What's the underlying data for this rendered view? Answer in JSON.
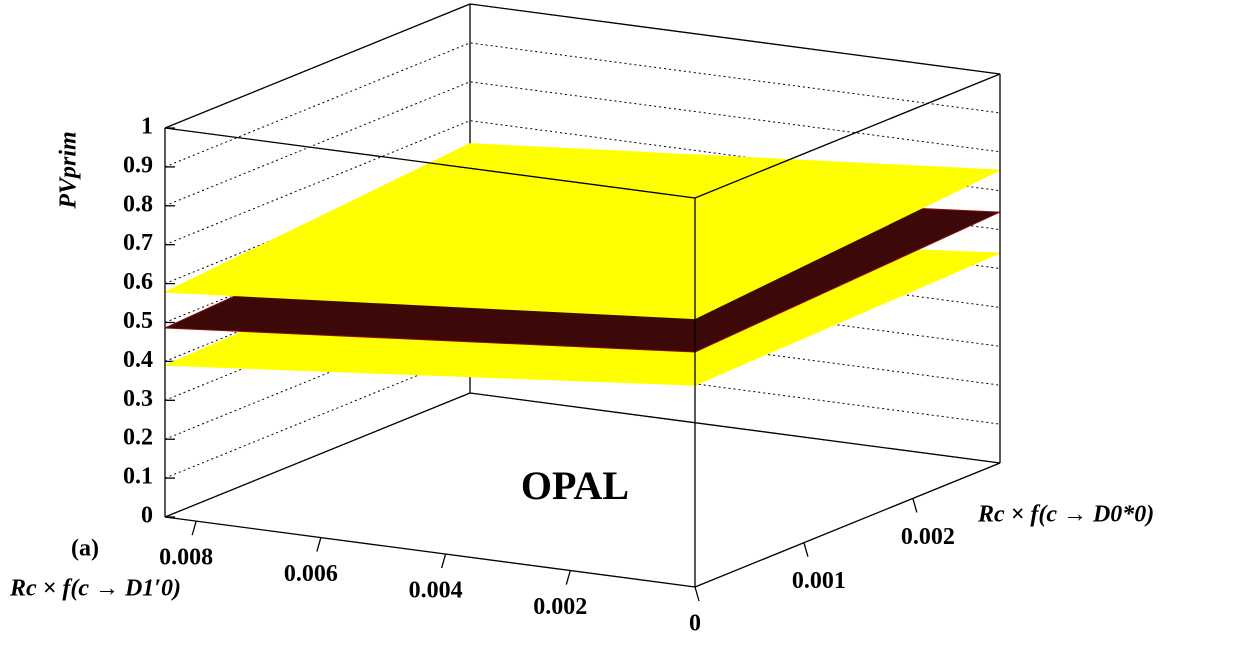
{
  "chart_data": {
    "type": "surface3d",
    "zlabel": "PVprim",
    "xlabel": "Rc × f(c → D1′0)",
    "ylabel": "Rc × f(c → D0*0)",
    "annotations": [
      "OPAL",
      "(a)"
    ],
    "xlim": [
      0,
      0.0085
    ],
    "xticks": [
      0.002,
      0.004,
      0.006,
      0.008
    ],
    "ylim": [
      0,
      0.0028
    ],
    "yticks": [
      0,
      0.001,
      0.002
    ],
    "zlim": [
      0,
      1
    ],
    "zticks": [
      0,
      0.1,
      0.2,
      0.3,
      0.4,
      0.5,
      0.6,
      0.7,
      0.8,
      0.9,
      1
    ],
    "grid": true,
    "series": [
      {
        "color": "#ffff00",
        "z": [
          [
            0.519,
            0.54
          ],
          [
            0.39,
            0.41
          ]
        ]
      },
      {
        "color": "#3d0808",
        "z": [
          [
            0.604,
            0.645
          ],
          [
            0.486,
            0.527
          ]
        ]
      },
      {
        "color": "#ffff00",
        "z": [
          [
            0.69,
            0.753
          ],
          [
            0.578,
            0.641
          ]
        ]
      }
    ]
  }
}
